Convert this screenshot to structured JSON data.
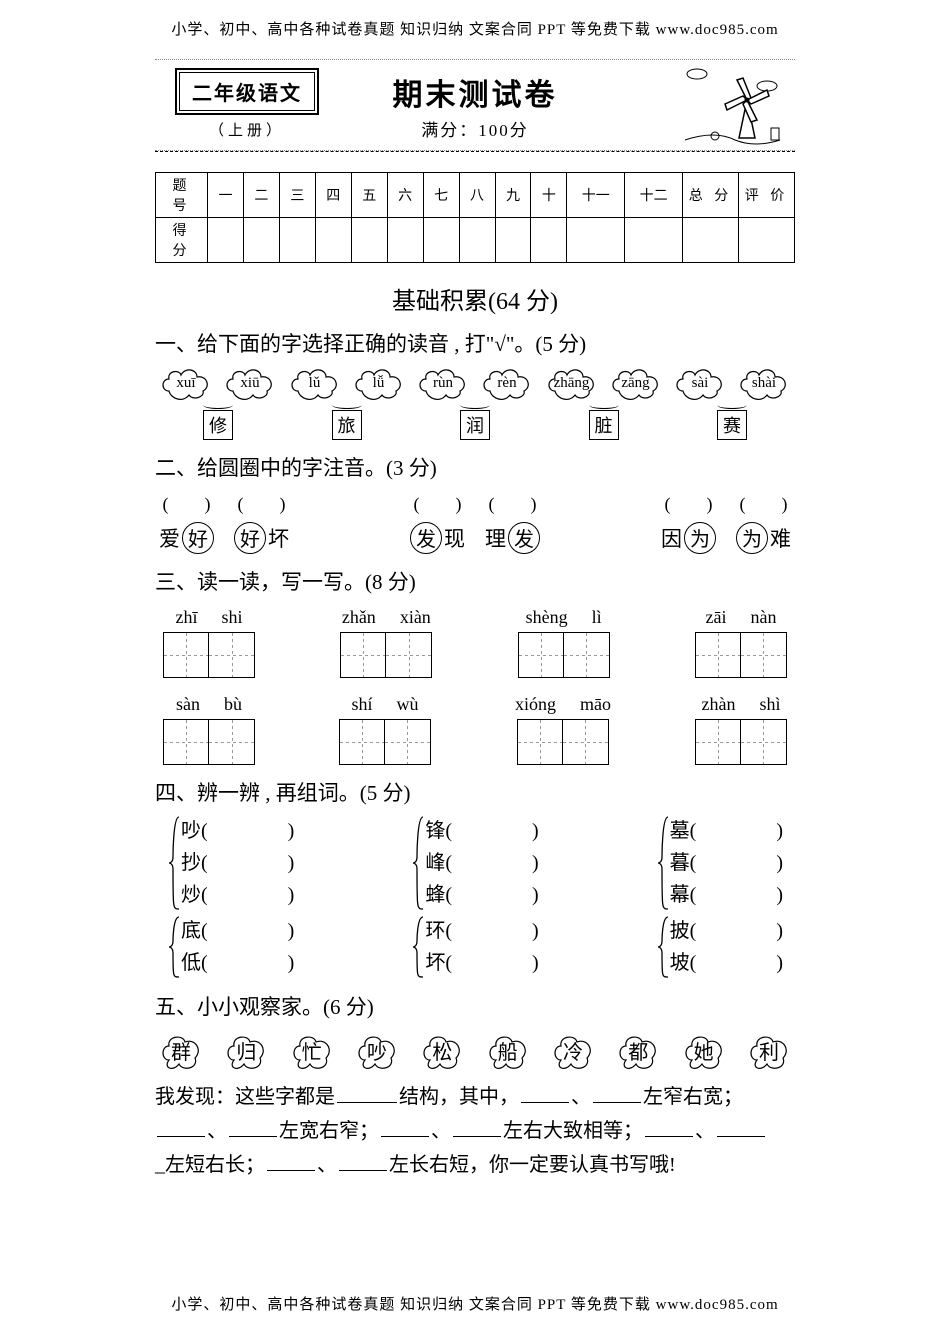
{
  "colors": {
    "text": "#000000",
    "bg": "#ffffff",
    "grid_dash": "#999999",
    "dot_border": "#888888"
  },
  "header_footer": "小学、初中、高中各种试卷真题 知识归纳 文案合同 PPT 等免费下载   www.doc985.com",
  "banner": {
    "grade": "二年级语文",
    "grade_sub": "（上册）",
    "title": "期末测试卷",
    "full_score": "满分：100分"
  },
  "score_table": {
    "row1_label": "题 号",
    "row2_label": "得 分",
    "cols": [
      "一",
      "二",
      "三",
      "四",
      "五",
      "六",
      "七",
      "八",
      "九",
      "十",
      "十一",
      "十二",
      "总 分",
      "评 价"
    ]
  },
  "section_heading": "基础积累(64 分)",
  "q1": {
    "title": "一、给下面的字选择正确的读音 , 打\"√\"。(5 分)",
    "groups": [
      {
        "pinyin": [
          "xuī",
          "xiū"
        ],
        "char": "修"
      },
      {
        "pinyin": [
          "lǔ",
          "lǚ"
        ],
        "char": "旅"
      },
      {
        "pinyin": [
          "rùn",
          "rèn"
        ],
        "char": "润"
      },
      {
        "pinyin": [
          "zhāng",
          "zāng"
        ],
        "char": "脏"
      },
      {
        "pinyin": [
          "sài",
          "shài"
        ],
        "char": "赛"
      }
    ]
  },
  "q2": {
    "title": "二、给圆圈中的字注音。(3 分)",
    "groups": [
      {
        "items": [
          {
            "pre": "爱",
            "ch": "好"
          },
          {
            "ch": "好",
            "post": "坏"
          }
        ]
      },
      {
        "items": [
          {
            "ch": "发",
            "post": "现"
          },
          {
            "pre": "理",
            "ch": "发"
          }
        ]
      },
      {
        "items": [
          {
            "pre": "因",
            "ch": "为"
          },
          {
            "ch": "为",
            "post": "难"
          }
        ]
      }
    ]
  },
  "q3": {
    "title": "三、读一读，写一写。(8 分)",
    "row1": [
      [
        "zhī",
        "shi"
      ],
      [
        "zhǎn",
        "xiàn"
      ],
      [
        "shèng",
        "lì"
      ],
      [
        "zāi",
        "nàn"
      ]
    ],
    "row2": [
      [
        "sàn",
        "bù"
      ],
      [
        "shí",
        "wù"
      ],
      [
        "xióng",
        "māo"
      ],
      [
        "zhàn",
        "shì"
      ]
    ]
  },
  "q4": {
    "title": "四、辨一辨 , 再组词。(5 分)",
    "col1_g1": [
      "吵",
      "抄",
      "炒"
    ],
    "col1_g2": [
      "底",
      "低"
    ],
    "col2_g1": [
      "锋",
      "峰",
      "蜂"
    ],
    "col2_g2": [
      "环",
      "坏"
    ],
    "col3_g1": [
      "墓",
      "暮",
      "幕"
    ],
    "col3_g2": [
      "披",
      "坡"
    ]
  },
  "q5": {
    "title": "五、小小观察家。(6 分)",
    "chars": [
      "群",
      "归",
      "忙",
      "吵",
      "松",
      "船",
      "冷",
      "都",
      "她",
      "利"
    ],
    "text_parts": {
      "p1_a": "我发现：这些字都是",
      "p1_b": "结构，其中，",
      "p1_c": "、",
      "p1_d": "左窄右宽；",
      "p2_b": "、",
      "p2_c": "左宽右窄；",
      "p2_e": "、",
      "p2_f": "左右大致相等；",
      "p2_h": "、",
      "p3_a": "左短右长；",
      "p3_c": "、",
      "p3_d": "左长右短，你一定要认真书写哦!"
    }
  }
}
